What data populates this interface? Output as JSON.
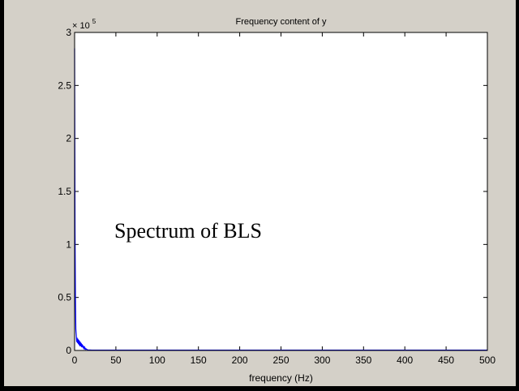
{
  "chart_data": {
    "type": "line",
    "title": "Frequency content of y",
    "xlabel": "frequency (Hz)",
    "ylabel": "",
    "xlim": [
      0,
      500
    ],
    "ylim": [
      0,
      3
    ],
    "y_multiplier": "× 10",
    "y_multiplier_exponent": "5",
    "xticks": [
      0,
      50,
      100,
      150,
      200,
      250,
      300,
      350,
      400,
      450,
      500
    ],
    "xtick_labels": [
      "0",
      "50",
      "100",
      "150",
      "200",
      "250",
      "300",
      "350",
      "400",
      "450",
      "500"
    ],
    "yticks": [
      0,
      0.5,
      1,
      1.5,
      2,
      2.5,
      3
    ],
    "ytick_labels": [
      "0",
      "0.5",
      "1",
      "1.5",
      "2",
      "2.5",
      "3"
    ],
    "grid": false,
    "annotation": "Spectrum of BLS",
    "series": [
      {
        "color": "#0000ff",
        "x": [
          0,
          0.5,
          1,
          1.5,
          2,
          2.5,
          3,
          3.5,
          4,
          4.5,
          5,
          5.5,
          6,
          6.5,
          7,
          7.5,
          8,
          8.5,
          9,
          9.5,
          10,
          10.5,
          11,
          11.5,
          12,
          12.5,
          13,
          13.5,
          14,
          14.5,
          15,
          16,
          20,
          50,
          100,
          150,
          200,
          250,
          300,
          350,
          400,
          450,
          500
        ],
        "y": [
          2.85,
          1.14,
          0.5,
          0.2,
          0.15,
          0.08,
          0.12,
          0.07,
          0.11,
          0.06,
          0.1,
          0.05,
          0.09,
          0.04,
          0.08,
          0.04,
          0.07,
          0.03,
          0.06,
          0.03,
          0.05,
          0.02,
          0.04,
          0.02,
          0.03,
          0.015,
          0.02,
          0.01,
          0.015,
          0.01,
          0.01,
          0.005,
          0.004,
          0.003,
          0.003,
          0.003,
          0.003,
          0.003,
          0.003,
          0.003,
          0.003,
          0.003,
          0.003
        ]
      }
    ]
  }
}
